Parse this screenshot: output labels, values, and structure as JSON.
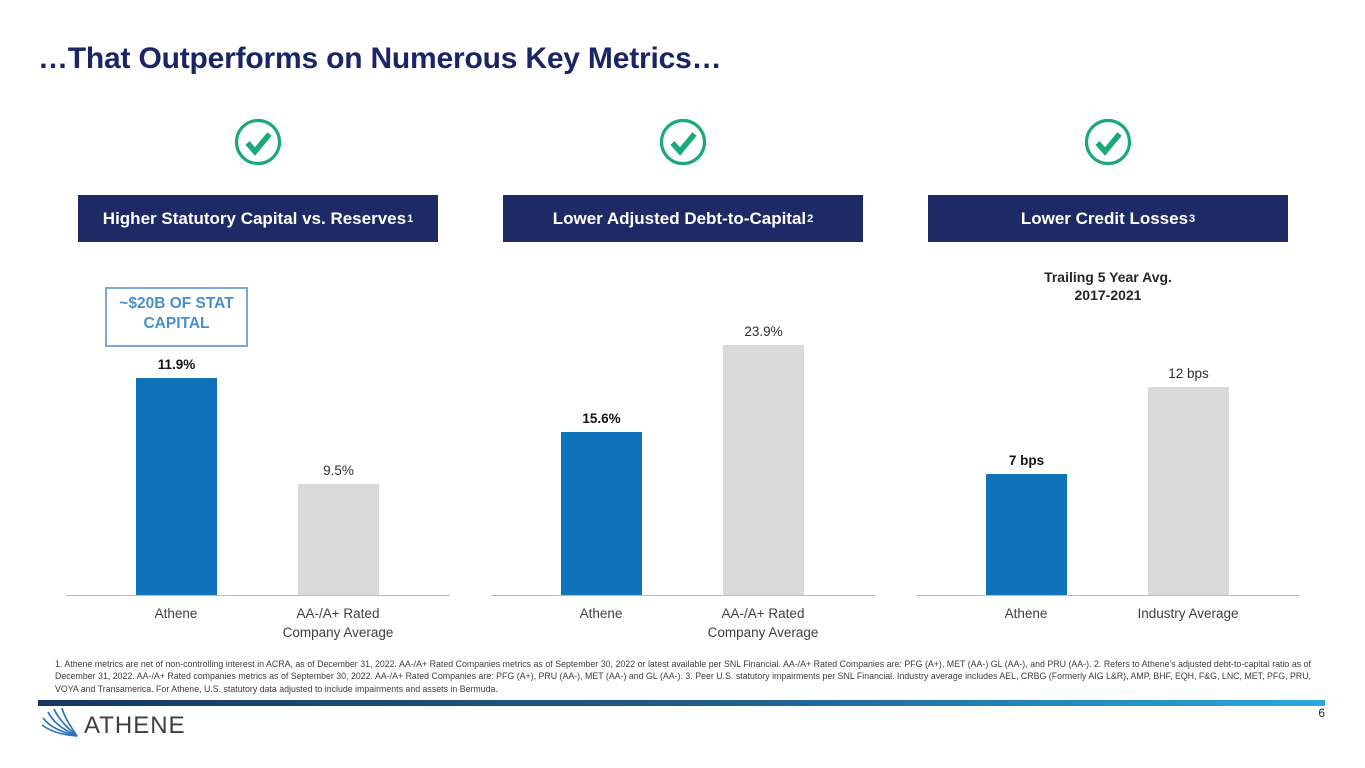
{
  "slide": {
    "title": "…That Outperforms on Numerous Key Metrics…",
    "page_number": "6",
    "logo_text": "ATHENE",
    "footnote": "1. Athene metrics are net of non-controlling interest in ACRA, as of December 31, 2022. AA-/A+ Rated Companies metrics as of September 30, 2022 or latest available per SNL Financial. AA-/A+ Rated Companies are: PFG (A+), MET (AA-) GL (AA-), and PRU (AA-). 2. Refers to Athene's adjusted debt-to-capital ratio as of December 31, 2022. AA-/A+ Rated companies metrics as of September 30, 2022.  AA-/A+ Rated Companies are: PFG (A+), PRU (AA-), MET (AA-) and GL (AA-). 3. Peer U.S. statutory impairments per SNL Financial. Industry average includes AEL, CRBG (Formerly AIG L&R), AMP, BHF, EQH, F&G, LNC, MET, PFG, PRU, VOYA and Transamerica. For Athene, U.S. statutory data adjusted to include impairments and assets in Bermuda."
  },
  "panels": [
    {
      "header": "Higher Statutory Capital vs. Reserves",
      "header_sup": "1",
      "callout_lines": [
        "~$20B OF STAT",
        "CAPITAL"
      ],
      "cat2_lines": [
        "AA-/A+ Rated",
        "Company Average"
      ]
    },
    {
      "header": "Lower Adjusted Debt-to-Capital",
      "header_sup": "2",
      "cat2_lines": [
        "AA-/A+ Rated",
        "Company Average"
      ]
    },
    {
      "header": "Lower Credit Losses",
      "header_sup": "3",
      "subtitle_lines": [
        "Trailing 5 Year Avg.",
        "2017-2021"
      ],
      "cat2_lines": [
        "Industry Average"
      ]
    }
  ],
  "chart_data": [
    {
      "type": "bar",
      "title": "Higher Statutory Capital vs. Reserves",
      "categories": [
        "Athene",
        "AA-/A+ Rated Company Average"
      ],
      "values": [
        11.9,
        9.5
      ],
      "value_labels": [
        "11.9%",
        "9.5%"
      ],
      "unit": "%",
      "ylim": [
        7,
        12
      ],
      "bar_colors": [
        "#1073ba",
        "#d9d9d9"
      ],
      "annotation": "~$20B OF STAT CAPITAL",
      "grid": false,
      "legend": false
    },
    {
      "type": "bar",
      "title": "Lower Adjusted Debt-to-Capital",
      "categories": [
        "Athene",
        "AA-/A+ Rated Company Average"
      ],
      "values": [
        15.6,
        23.9
      ],
      "value_labels": [
        "15.6%",
        "23.9%"
      ],
      "unit": "%",
      "ylim": [
        0,
        25
      ],
      "bar_colors": [
        "#1073ba",
        "#d9d9d9"
      ],
      "grid": false,
      "legend": false
    },
    {
      "type": "bar",
      "title": "Lower Credit Losses",
      "subtitle": "Trailing 5 Year Avg. 2017-2021",
      "categories": [
        "Athene",
        "Industry Average"
      ],
      "values": [
        7,
        12
      ],
      "value_labels": [
        "7 bps",
        "12 bps"
      ],
      "unit": "bps",
      "ylim": [
        0,
        13
      ],
      "bar_colors": [
        "#1073ba",
        "#d9d9d9"
      ],
      "grid": false,
      "legend": false
    }
  ],
  "colors": {
    "navy_header": "#1e2a66",
    "title_navy": "#1b2565",
    "athene_blue": "#1073ba",
    "peer_gray": "#d9d9d9",
    "check_green": "#1ca87d",
    "callout_blue": "#4a90c8",
    "callout_border": "#7da7d9",
    "accent_gradient_start": "#16375e",
    "accent_gradient_end": "#2aa9e0",
    "logo_blue": "#2f74b6"
  }
}
